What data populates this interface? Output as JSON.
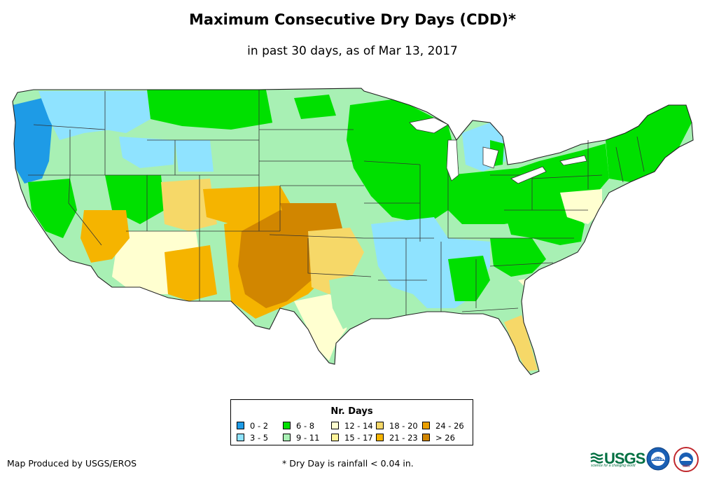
{
  "title": "Maximum Consecutive Dry Days (CDD)*",
  "subtitle": "in past 30 days, as of Mar 13, 2017",
  "legend": {
    "title": "Nr. Days",
    "items": [
      {
        "label": "0 - 2",
        "color": "#1e9be6"
      },
      {
        "label": "3 - 5",
        "color": "#8fe3ff"
      },
      {
        "label": "6 - 8",
        "color": "#00e000"
      },
      {
        "label": "9 - 11",
        "color": "#a8f0b4"
      },
      {
        "label": "12 - 14",
        "color": "#ffffd0"
      },
      {
        "label": "15 - 17",
        "color": "#fff59a"
      },
      {
        "label": "18 - 20",
        "color": "#f6d868"
      },
      {
        "label": "21 - 23",
        "color": "#f5b400"
      },
      {
        "label": "24 - 26",
        "color": "#eba000"
      },
      {
        "label": "> 26",
        "color": "#d18600"
      }
    ]
  },
  "credit": "Map Produced by USGS/EROS",
  "footnote": "* Dry Day is rainfall < 0.04 in.",
  "logos": {
    "usgs": "USGS",
    "usgs_tagline": "science for a changing world",
    "noaa": "noaa",
    "nws": "NWS"
  }
}
